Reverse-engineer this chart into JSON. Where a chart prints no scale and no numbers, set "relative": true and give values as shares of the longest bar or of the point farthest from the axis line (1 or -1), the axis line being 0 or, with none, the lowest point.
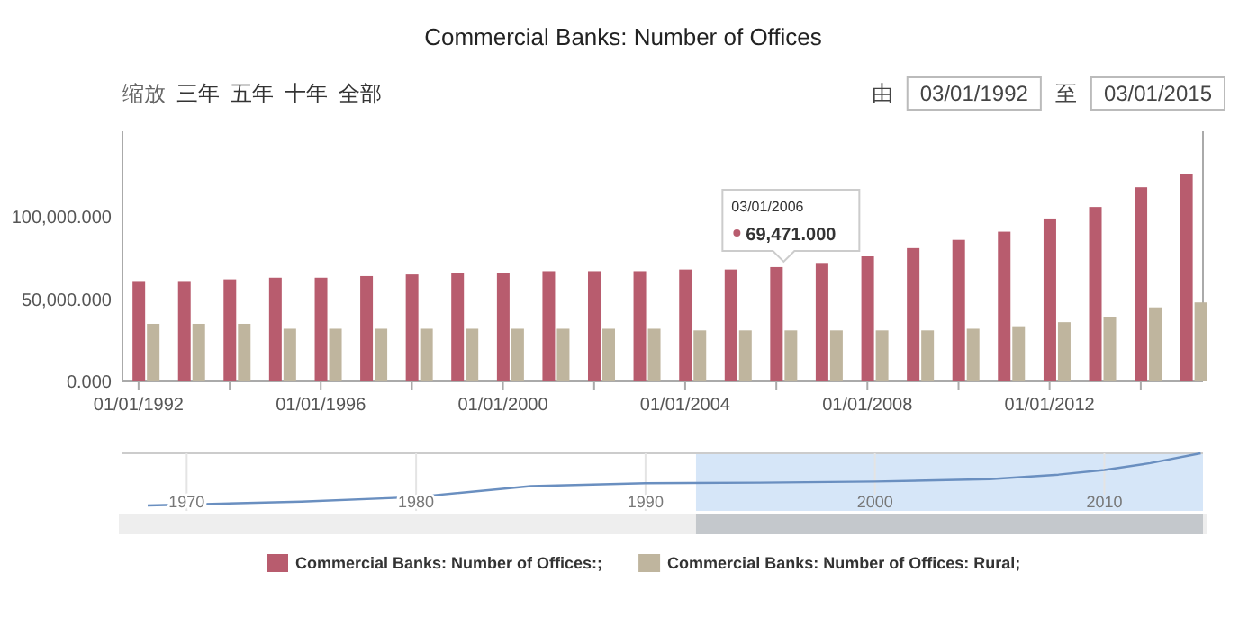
{
  "chart_data": [
    {
      "type": "bar",
      "title": "Commercial Banks: Number of Offices",
      "x": [
        "1992-03-01",
        "1993-03-01",
        "1994-03-01",
        "1995-03-01",
        "1996-03-01",
        "1997-03-01",
        "1998-03-01",
        "1999-03-01",
        "2000-03-01",
        "2001-03-01",
        "2002-03-01",
        "2003-03-01",
        "2004-03-01",
        "2005-03-01",
        "2006-03-01",
        "2007-03-01",
        "2008-03-01",
        "2009-03-01",
        "2010-03-01",
        "2011-03-01",
        "2012-03-01",
        "2013-03-01",
        "2014-03-01",
        "2015-03-01"
      ],
      "series": [
        {
          "name": "Commercial Banks: Number of Offices:;",
          "color": "#b85c6e",
          "values": [
            61000,
            61000,
            62000,
            63000,
            63000,
            64000,
            65000,
            66000,
            66000,
            67000,
            67000,
            67000,
            68000,
            68000,
            69471,
            72000,
            76000,
            81000,
            86000,
            91000,
            99000,
            106000,
            118000,
            126000
          ],
          "value_labels": [
            null,
            null,
            null,
            null,
            null,
            null,
            null,
            null,
            null,
            null,
            null,
            null,
            null,
            null,
            "69,471.000",
            null,
            null,
            null,
            null,
            null,
            null,
            null,
            null,
            null
          ]
        },
        {
          "name": "Commercial Banks: Number of Offices: Rural;",
          "color": "#bfb59e",
          "values": [
            35000,
            35000,
            35000,
            32000,
            32000,
            32000,
            32000,
            32000,
            32000,
            32000,
            32000,
            32000,
            31000,
            31000,
            31000,
            31000,
            31000,
            31000,
            32000,
            33000,
            36000,
            39000,
            45000,
            48000
          ]
        }
      ],
      "xlim": [
        "1991-08-25",
        "2015-05-15"
      ],
      "xticks": [
        {
          "value": "1992-01-01",
          "label": "01/01/1992"
        },
        {
          "value": "1994-01-01",
          "label": null
        },
        {
          "value": "1996-01-01",
          "label": "01/01/1996"
        },
        {
          "value": "1998-01-01",
          "label": null
        },
        {
          "value": "2000-01-01",
          "label": "01/01/2000"
        },
        {
          "value": "2002-01-01",
          "label": null
        },
        {
          "value": "2004-01-01",
          "label": "01/01/2004"
        },
        {
          "value": "2006-01-01",
          "label": null
        },
        {
          "value": "2008-01-01",
          "label": "01/01/2008"
        },
        {
          "value": "2010-01-01",
          "label": null
        },
        {
          "value": "2012-01-01",
          "label": "01/01/2012"
        },
        {
          "value": "2014-01-01",
          "label": null
        }
      ],
      "ylim": [
        0,
        152000
      ],
      "yticks": [
        {
          "value": 0,
          "label": "0.000"
        },
        {
          "value": 50000,
          "label": "50,000.000"
        },
        {
          "value": 100000,
          "label": "100,000.000"
        }
      ],
      "legend": "bottom",
      "annotations": [
        "缩放",
        "三年",
        "五年",
        "十年",
        "全部",
        "由",
        "03/01/1992",
        "至",
        "03/01/2015",
        "03/01/2006"
      ]
    },
    {
      "type": "line",
      "relative": true,
      "color": "#6a8fc0",
      "x": [
        1968.3,
        1975,
        1980,
        1985,
        1990,
        1995,
        2000,
        2005,
        2008,
        2010,
        2012,
        2014.2
      ],
      "values": [
        0.093,
        0.16,
        0.24,
        0.43,
        0.48,
        0.49,
        0.51,
        0.55,
        0.63,
        0.71,
        0.83,
        1
      ],
      "xlim": [
        1967.2,
        2014.3
      ],
      "xticks": [
        1970,
        1980,
        1990,
        2000,
        2010
      ],
      "grid": "x",
      "tick_labels": "x",
      "bands": [
        {
          "axis": "x",
          "from": 1992.2,
          "to": 2014.3,
          "color": "#d6e6f8"
        }
      ]
    }
  ]
}
